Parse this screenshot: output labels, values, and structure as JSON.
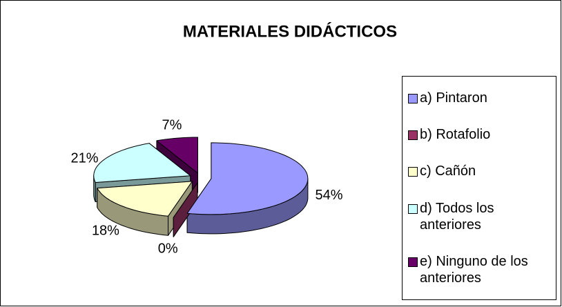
{
  "chart_data": {
    "type": "pie3d",
    "title": "MATERIALES DIDÁCTICOS",
    "categories": [
      "a) Pintaron",
      "b) Rotafolio",
      "c) Cañón",
      "d) Todos los anteriores",
      "e) Ninguno de los anteriores"
    ],
    "values": [
      54,
      0,
      18,
      21,
      7
    ],
    "value_labels": [
      "54%",
      "0%",
      "18%",
      "21%",
      "7%"
    ],
    "colors": [
      "#9999ff",
      "#993366",
      "#ffffcc",
      "#ccffff",
      "#660066"
    ],
    "legend": "right"
  }
}
